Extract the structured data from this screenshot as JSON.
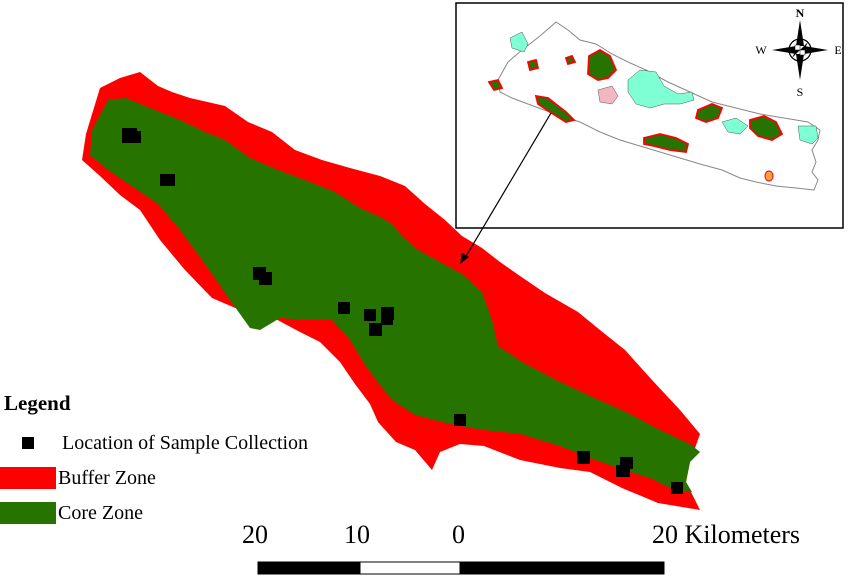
{
  "legend": {
    "title": "Legend",
    "items": [
      {
        "label": "Location of Sample Collection",
        "symbol": "square-point",
        "color": "#000000"
      },
      {
        "label": "Buffer Zone",
        "symbol": "patch",
        "color": "#ff0000"
      },
      {
        "label": "Core Zone",
        "symbol": "patch",
        "color": "#267300"
      }
    ]
  },
  "scale_bar": {
    "labels": [
      "20",
      "10",
      "0",
      "20 Kilometers"
    ],
    "fill_colors": [
      "#000000",
      "#ffffff",
      "#000000"
    ]
  },
  "compass": {
    "north": "N",
    "south": "S",
    "east": "E",
    "west": "W"
  },
  "colors": {
    "buffer_zone": "#ff0000",
    "core_zone": "#267300",
    "sample_point": "#000000",
    "inset_country_fill": "#ffffff",
    "inset_other_area": "#7fffd4",
    "inset_pink_area": "#f4b6c2",
    "inset_orange_area": "#ffa040",
    "background": "#ffffff"
  },
  "sample_point_count": 18
}
